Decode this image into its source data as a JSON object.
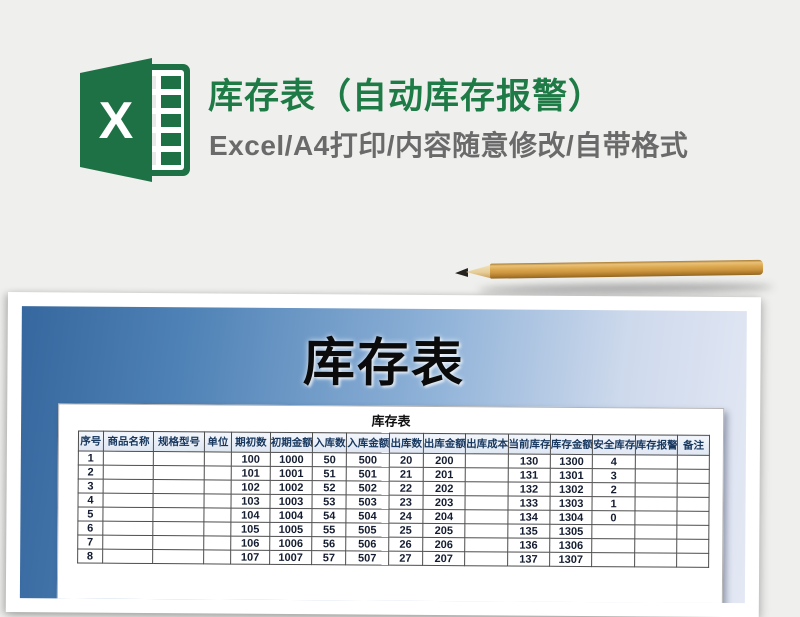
{
  "page": {
    "background_color": "#efefed"
  },
  "header": {
    "logo": {
      "name": "excel-logo",
      "letter": "X",
      "green": "#1e7145",
      "cell_green": "#21a366"
    },
    "title": "库存表（自动库存报警）",
    "title_color": "#1e7b46",
    "subtitle": "Excel/A4打印/内容随意修改/自带格式",
    "subtitle_color": "#6a6a6a"
  },
  "decor": {
    "pencil": "wooden-pencil-pointing-left"
  },
  "preview": {
    "banner_title": "库存表",
    "banner_gradient_left": "#36679e",
    "banner_gradient_right": "#e4e8f4",
    "sheet_title": "库存表",
    "table": {
      "columns": [
        "序号",
        "商品名称",
        "规格型号",
        "单位",
        "期初数",
        "初期金额",
        "入库数",
        "入库金额",
        "出库数",
        "出库金额",
        "出库成本",
        "当前库存",
        "库存金额",
        "安全库存",
        "库存报警",
        "备注"
      ],
      "rows": [
        [
          "1",
          "",
          "",
          "",
          "100",
          "1000",
          "50",
          "500",
          "20",
          "200",
          "",
          "130",
          "1300",
          "4",
          "",
          ""
        ],
        [
          "2",
          "",
          "",
          "",
          "101",
          "1001",
          "51",
          "501",
          "21",
          "201",
          "",
          "131",
          "1301",
          "3",
          "",
          ""
        ],
        [
          "3",
          "",
          "",
          "",
          "102",
          "1002",
          "52",
          "502",
          "22",
          "202",
          "",
          "132",
          "1302",
          "2",
          "",
          ""
        ],
        [
          "4",
          "",
          "",
          "",
          "103",
          "1003",
          "53",
          "503",
          "23",
          "203",
          "",
          "133",
          "1303",
          "1",
          "",
          ""
        ],
        [
          "5",
          "",
          "",
          "",
          "104",
          "1004",
          "54",
          "504",
          "24",
          "204",
          "",
          "134",
          "1304",
          "0",
          "",
          ""
        ],
        [
          "6",
          "",
          "",
          "",
          "105",
          "1005",
          "55",
          "505",
          "25",
          "205",
          "",
          "135",
          "1305",
          "",
          "",
          ""
        ],
        [
          "7",
          "",
          "",
          "",
          "106",
          "1006",
          "56",
          "506",
          "26",
          "206",
          "",
          "136",
          "1306",
          "",
          "",
          ""
        ],
        [
          "8",
          "",
          "",
          "",
          "107",
          "1007",
          "57",
          "507",
          "27",
          "207",
          "",
          "137",
          "1307",
          "",
          "",
          ""
        ]
      ],
      "header_bg": "#dfe7f3",
      "header_text_color": "#17375e"
    }
  }
}
